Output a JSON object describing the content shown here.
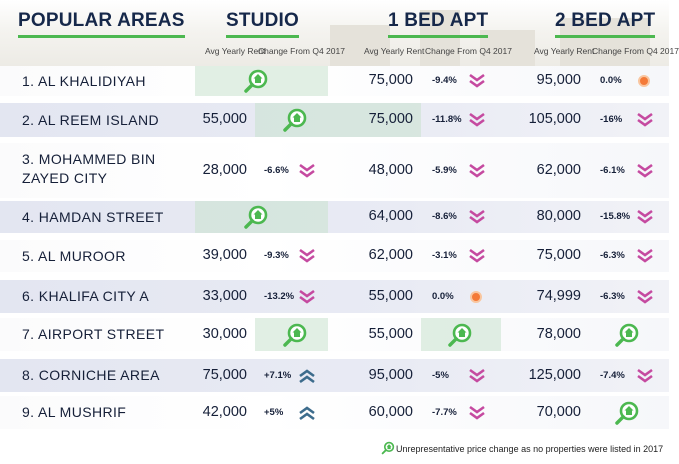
{
  "headers": {
    "areas": "POPULAR AREAS",
    "studio": "STUDIO",
    "one_bed": "1 BED APT",
    "two_bed": "2 BED APT"
  },
  "subheaders": {
    "studio_rent": "Avg Yearly Rent",
    "studio_change": "Change From Q4 2017",
    "one_bed_rent": "Avg Yearly Rent",
    "one_bed_change": "Change From Q4 2017",
    "two_bed_rent": "Avg Yearly Rent",
    "two_bed_change": "Change From Q4 2017"
  },
  "rows": [
    {
      "name": "1. AL KHALIDIYAH",
      "studio": {
        "rent": "",
        "change": "",
        "icon": "magnifier-house-icon"
      },
      "one_bed": {
        "rent": "75,000",
        "change": "-9.4%",
        "icon": "down-chevron-icon"
      },
      "two_bed": {
        "rent": "95,000",
        "change": "0.0%",
        "icon": "orange-dot-icon"
      }
    },
    {
      "name": "2. AL REEM ISLAND",
      "studio": {
        "rent": "55,000",
        "change": "",
        "icon": "magnifier-house-icon"
      },
      "one_bed": {
        "rent": "75,000",
        "change": "-11.8%",
        "icon": "down-chevron-icon"
      },
      "two_bed": {
        "rent": "105,000",
        "change": "-16%",
        "icon": "down-chevron-icon"
      }
    },
    {
      "name": "3. MOHAMMED BIN ZAYED CITY",
      "studio": {
        "rent": "28,000",
        "change": "-6.6%",
        "icon": "down-chevron-icon"
      },
      "one_bed": {
        "rent": "48,000",
        "change": "-5.9%",
        "icon": "down-chevron-icon"
      },
      "two_bed": {
        "rent": "62,000",
        "change": "-6.1%",
        "icon": "down-chevron-icon"
      }
    },
    {
      "name": "4. HAMDAN STREET",
      "studio": {
        "rent": "",
        "change": "",
        "icon": "magnifier-house-icon"
      },
      "one_bed": {
        "rent": "64,000",
        "change": "-8.6%",
        "icon": "down-chevron-icon"
      },
      "two_bed": {
        "rent": "80,000",
        "change": "-15.8%",
        "icon": "down-chevron-icon"
      }
    },
    {
      "name": "5. AL MUROOR",
      "studio": {
        "rent": "39,000",
        "change": "-9.3%",
        "icon": "down-chevron-icon"
      },
      "one_bed": {
        "rent": "62,000",
        "change": "-3.1%",
        "icon": "down-chevron-icon"
      },
      "two_bed": {
        "rent": "75,000",
        "change": "-6.3%",
        "icon": "down-chevron-icon"
      }
    },
    {
      "name": "6. KHALIFA CITY A",
      "studio": {
        "rent": "33,000",
        "change": "-13.2%",
        "icon": "down-chevron-icon"
      },
      "one_bed": {
        "rent": "55,000",
        "change": "0.0%",
        "icon": "orange-dot-icon"
      },
      "two_bed": {
        "rent": "74,999",
        "change": "-6.3%",
        "icon": "down-chevron-icon"
      }
    },
    {
      "name": "7. AIRPORT STREET",
      "studio": {
        "rent": "30,000",
        "change": "",
        "icon": "magnifier-house-icon"
      },
      "one_bed": {
        "rent": "55,000",
        "change": "",
        "icon": "magnifier-house-icon"
      },
      "two_bed": {
        "rent": "78,000",
        "change": "",
        "icon": "magnifier-house-icon"
      }
    },
    {
      "name": "8. CORNICHE AREA",
      "studio": {
        "rent": "75,000",
        "change": "+7.1%",
        "icon": "up-chevron-icon"
      },
      "one_bed": {
        "rent": "95,000",
        "change": "-5%",
        "icon": "down-chevron-icon"
      },
      "two_bed": {
        "rent": "125,000",
        "change": "-7.4%",
        "icon": "down-chevron-icon"
      }
    },
    {
      "name": "9. AL MUSHRIF",
      "studio": {
        "rent": "42,000",
        "change": "+5%",
        "icon": "up-chevron-icon"
      },
      "one_bed": {
        "rent": "60,000",
        "change": "-7.7%",
        "icon": "down-chevron-icon"
      },
      "two_bed": {
        "rent": "70,000",
        "change": "",
        "icon": "magnifier-house-icon"
      }
    }
  ],
  "legend": {
    "icon": "magnifier-house-icon",
    "text": "Unrepresentative price change as no properties were listed in 2017"
  },
  "colors": {
    "heading": "#16284a",
    "accent_green": "#4cb850",
    "down_arrow": "#c54aa0",
    "up_arrow": "#3d6c8c",
    "neutral_dot": "#f47a38",
    "row_highlight": "#e3e6f1"
  }
}
